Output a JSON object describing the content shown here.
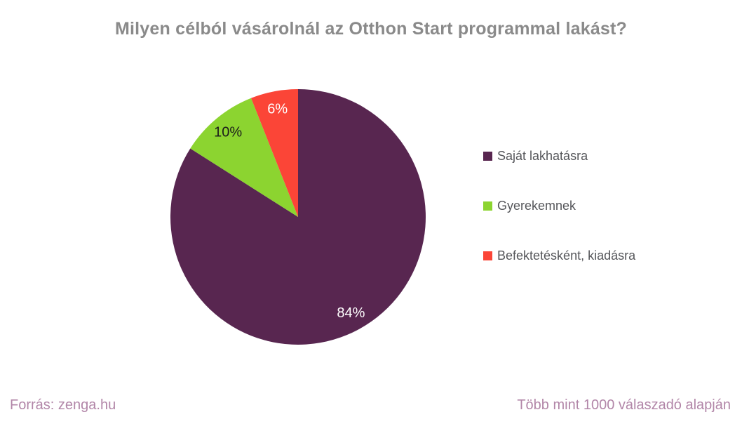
{
  "title": "Milyen célból vásárolnál az Otthon Start programmal lakást?",
  "chart_data": {
    "type": "pie",
    "title": "Milyen célból vásárolnál az Otthon Start programmal lakást?",
    "start_angle_deg": 0,
    "direction": "clockwise",
    "legend_position": "right",
    "slices": [
      {
        "label": "Saját lakhatásra",
        "value": 84,
        "display": "84%",
        "color": "#582650",
        "label_color": "#ffffff"
      },
      {
        "label": "Gyerekemnek",
        "value": 10,
        "display": "10%",
        "color": "#8cd430",
        "label_color": "#1a1a1a"
      },
      {
        "label": "Befektetésként, kiadásra",
        "value": 6,
        "display": "6%",
        "color": "#fb4537",
        "label_color": "#ffffff"
      }
    ]
  },
  "footer": {
    "source": "Forrás: zenga.hu",
    "note": "Több mint 1000 válaszadó alapján"
  },
  "colors": {
    "background": "#ffffff",
    "title_text": "#8a8a8a",
    "legend_text": "#55565a",
    "footer_text": "#b286a8"
  }
}
